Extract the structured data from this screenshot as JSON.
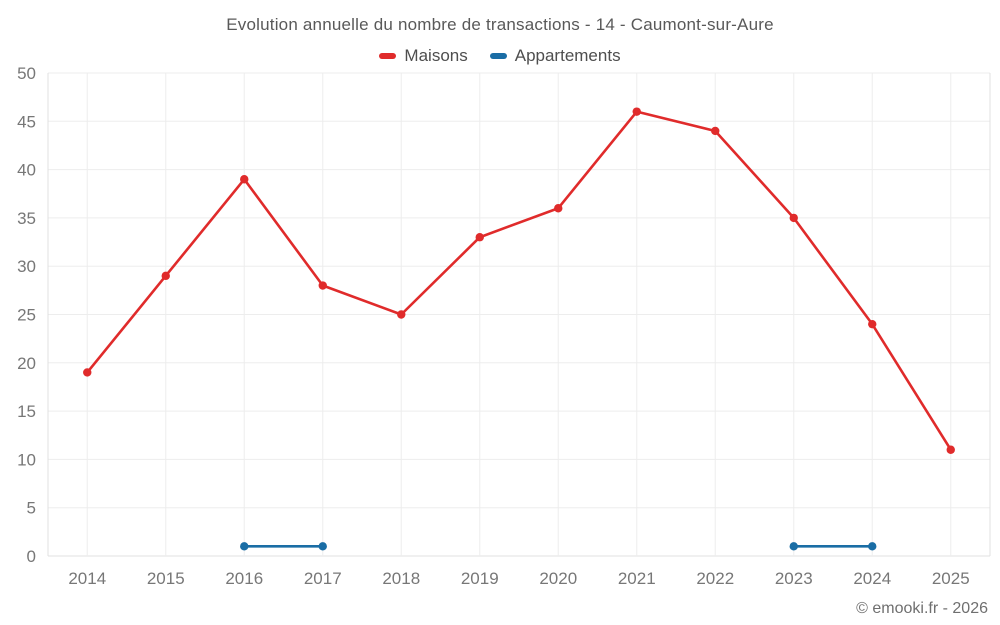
{
  "header": {
    "title": "Evolution annuelle du nombre de transactions - 14 - Caumont-sur-Aure"
  },
  "legend": {
    "items": [
      {
        "label": "Maisons",
        "color": "#e02b2b"
      },
      {
        "label": "Appartements",
        "color": "#1a6da5"
      }
    ]
  },
  "footer": {
    "copyright": "© emooki.fr - 2026"
  },
  "colors": {
    "background": "#ffffff",
    "grid": "#ededed",
    "axis_border": "#e0e0e0",
    "axis_text": "#777777",
    "title_text": "#595959",
    "legend_text": "#4e4e4e",
    "maisons": "#e02b2b",
    "appartements": "#1a6da5"
  },
  "chart_data": {
    "type": "line",
    "title": "Evolution annuelle du nombre de transactions - 14 - Caumont-sur-Aure",
    "categories": [
      "2014",
      "2015",
      "2016",
      "2017",
      "2018",
      "2019",
      "2020",
      "2021",
      "2022",
      "2023",
      "2024",
      "2025"
    ],
    "series": [
      {
        "name": "Maisons",
        "color": "#e02b2b",
        "values": [
          19,
          29,
          39,
          28,
          25,
          33,
          36,
          46,
          44,
          35,
          24,
          11
        ]
      },
      {
        "name": "Appartements",
        "color": "#1a6da5",
        "values": [
          null,
          null,
          1,
          1,
          null,
          null,
          null,
          null,
          null,
          1,
          1,
          null
        ]
      }
    ],
    "xlabel": "",
    "ylabel": "",
    "ylim": [
      0,
      50
    ],
    "ytick_step": 5,
    "grid": true,
    "legend_position": "top"
  }
}
